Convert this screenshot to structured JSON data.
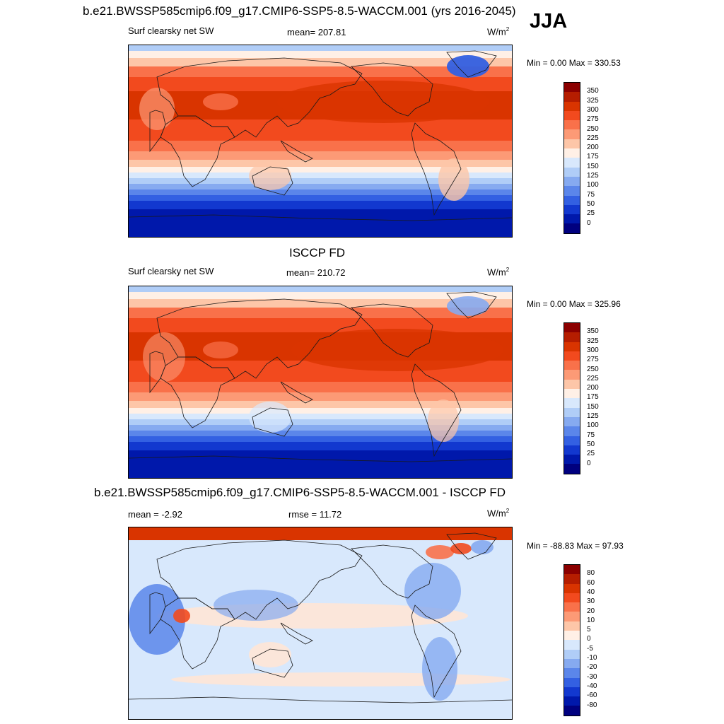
{
  "season": "JJA",
  "panels": [
    {
      "title": "b.e21.BWSSP585cmip6.f09_g17.CMIP6-SSP5-8.5-WACCM.001 (yrs 2016-2045)",
      "variable": "Surf clearsky net SW",
      "stat_left": "",
      "stat_center": "mean= 207.81",
      "units": "W/m",
      "units_sup": "2",
      "minmax": "Min =   0.00 Max = 330.53",
      "colorbar_labels": [
        "350",
        "325",
        "300",
        "275",
        "250",
        "225",
        "200",
        "175",
        "150",
        "125",
        "100",
        "75",
        "50",
        "25",
        "0"
      ]
    },
    {
      "title": "ISCCP FD",
      "variable": "Surf clearsky net SW",
      "stat_left": "",
      "stat_center": "mean= 210.72",
      "units": "W/m",
      "units_sup": "2",
      "minmax": "Min =   0.00 Max = 325.96",
      "colorbar_labels": [
        "350",
        "325",
        "300",
        "275",
        "250",
        "225",
        "200",
        "175",
        "150",
        "125",
        "100",
        "75",
        "50",
        "25",
        "0"
      ]
    },
    {
      "title": "b.e21.BWSSP585cmip6.f09_g17.CMIP6-SSP5-8.5-WACCM.001 - ISCCP FD",
      "variable": "",
      "stat_left": "mean =  -2.92",
      "stat_center": "rmse =  11.72",
      "units": "W/m",
      "units_sup": "2",
      "minmax": "Min = -88.83 Max =  97.93",
      "colorbar_labels": [
        "80",
        "60",
        "40",
        "30",
        "20",
        "10",
        "5",
        "0",
        "-5",
        "-10",
        "-20",
        "-30",
        "-40",
        "-60",
        "-80"
      ]
    }
  ],
  "colors": {
    "seq": [
      "#8b0000",
      "#b51d00",
      "#d93400",
      "#f24a1e",
      "#f9714a",
      "#fc9a76",
      "#fdc6a8",
      "#fff0e6",
      "#d8e8fc",
      "#b0cdf7",
      "#86aaf0",
      "#5b86ea",
      "#3360e2",
      "#1238cf",
      "#0018ab",
      "#00007f"
    ]
  }
}
